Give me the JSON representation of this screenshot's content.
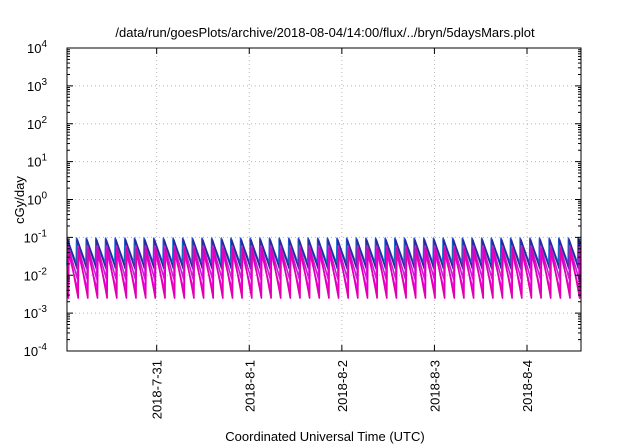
{
  "chart_data": {
    "type": "line",
    "title": "/data/run/goesPlots/archive/2018-08-04/14:00/flux/../bryn/5daysMars.plot",
    "xlabel": "Coordinated Universal Time (UTC)",
    "ylabel": "cGy/day",
    "yscale": "log",
    "ylim": [
      0.0001,
      10000
    ],
    "y_ticks": [
      {
        "value": 0.0001,
        "base": "10",
        "exp": "-4"
      },
      {
        "value": 0.001,
        "base": "10",
        "exp": "-3"
      },
      {
        "value": 0.01,
        "base": "10",
        "exp": "-2"
      },
      {
        "value": 0.1,
        "base": "10",
        "exp": "-1"
      },
      {
        "value": 1,
        "base": "10",
        "exp": "0"
      },
      {
        "value": 10,
        "base": "10",
        "exp": "1"
      },
      {
        "value": 100,
        "base": "10",
        "exp": "2"
      },
      {
        "value": 1000,
        "base": "10",
        "exp": "3"
      },
      {
        "value": 10000,
        "base": "10",
        "exp": "4"
      }
    ],
    "xlim": [
      "2018-07-30T00:45",
      "2018-08-04T14:00"
    ],
    "x_ticks": [
      "2018-7-31",
      "2018-8-1",
      "2018-8-2",
      "2018-8-3",
      "2018-8-4"
    ],
    "grid": true,
    "legend": "none",
    "cycle_hours": 2.5,
    "series": [
      {
        "color": "#1f4fd8",
        "values_peak": 0.095,
        "values_trough": 0.02
      },
      {
        "color": "#00b8c8",
        "values_peak": 0.07,
        "values_trough": 0.018
      },
      {
        "color": "#2a2a9a",
        "values_peak": 0.085,
        "values_trough": 0.015
      },
      {
        "color": "#c81ed8",
        "values_peak": 0.06,
        "values_trough": 0.008
      },
      {
        "color": "#ff00ff",
        "values_peak": 0.04,
        "values_trough": 0.004
      },
      {
        "color": "#e000b0",
        "values_peak": 0.05,
        "values_trough": 0.0025
      }
    ]
  }
}
